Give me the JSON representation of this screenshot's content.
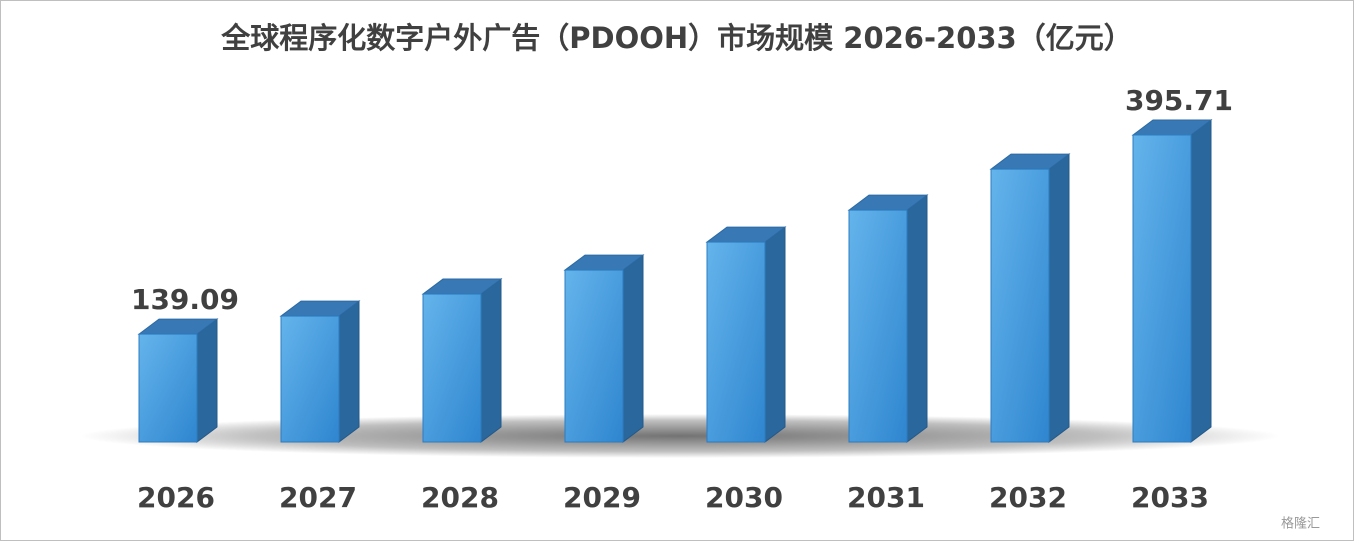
{
  "chart_data": {
    "type": "bar3d",
    "title": "全球程序化数字户外广告（PDOOH）市场规模 2026-2033（亿元）",
    "categories": [
      "2026",
      "2027",
      "2028",
      "2029",
      "2030",
      "2031",
      "2032",
      "2033"
    ],
    "values": [
      139.09,
      162.3,
      190.7,
      221.6,
      257.7,
      298.9,
      351.7,
      395.71
    ],
    "value_labels": [
      "139.09",
      null,
      null,
      null,
      null,
      null,
      null,
      "395.71"
    ],
    "color": "#3d95dc",
    "watermark": "格隆汇"
  }
}
